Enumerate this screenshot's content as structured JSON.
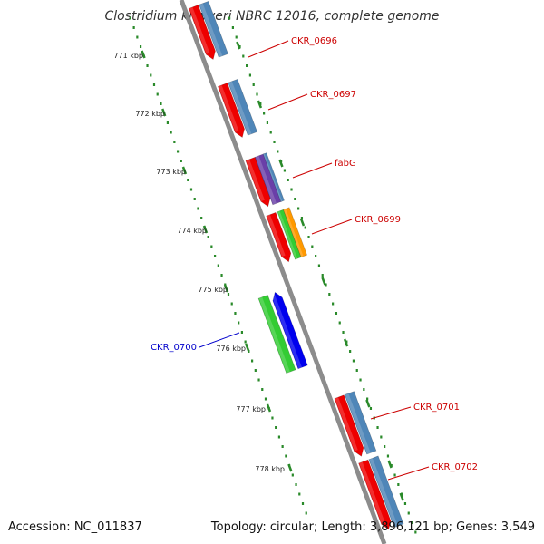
{
  "title": "Clostridium kluyveri NBRC 12016, complete genome",
  "footer": {
    "accession": "Accession: NC_011837",
    "summary": "Topology: circular; Length: 3,896,121 bp; Genes: 3,549"
  },
  "scale_labels": [
    "771 kbp",
    "772 kbp",
    "773 kbp",
    "774 kbp",
    "775 kbp",
    "776 kbp",
    "777 kbp",
    "778 kbp"
  ],
  "genes": [
    {
      "label": "CKR_0696",
      "label_color": "#cc0000",
      "strand": "forward"
    },
    {
      "label": "CKR_0697",
      "label_color": "#cc0000",
      "strand": "forward"
    },
    {
      "label": "fabG",
      "label_color": "#cc0000",
      "strand": "forward"
    },
    {
      "label": "CKR_0699",
      "label_color": "#cc0000",
      "strand": "forward"
    },
    {
      "label": "CKR_0700",
      "label_color": "#0000cc",
      "strand": "reverse"
    },
    {
      "label": "CKR_0701",
      "label_color": "#cc0000",
      "strand": "forward"
    },
    {
      "label": "CKR_0702",
      "label_color": "#cc0000",
      "strand": "forward"
    }
  ],
  "colors": {
    "cds_forward": "#ee0000",
    "cds_reverse": "#0000ee",
    "cog_steelblue": "#4f86b8",
    "cog_purple": "#6a3fa8",
    "cog_green": "#33cc33",
    "cog_orange": "#ff9900",
    "backbone": "#8c8c8c",
    "ticks": "#2a8a2a"
  }
}
